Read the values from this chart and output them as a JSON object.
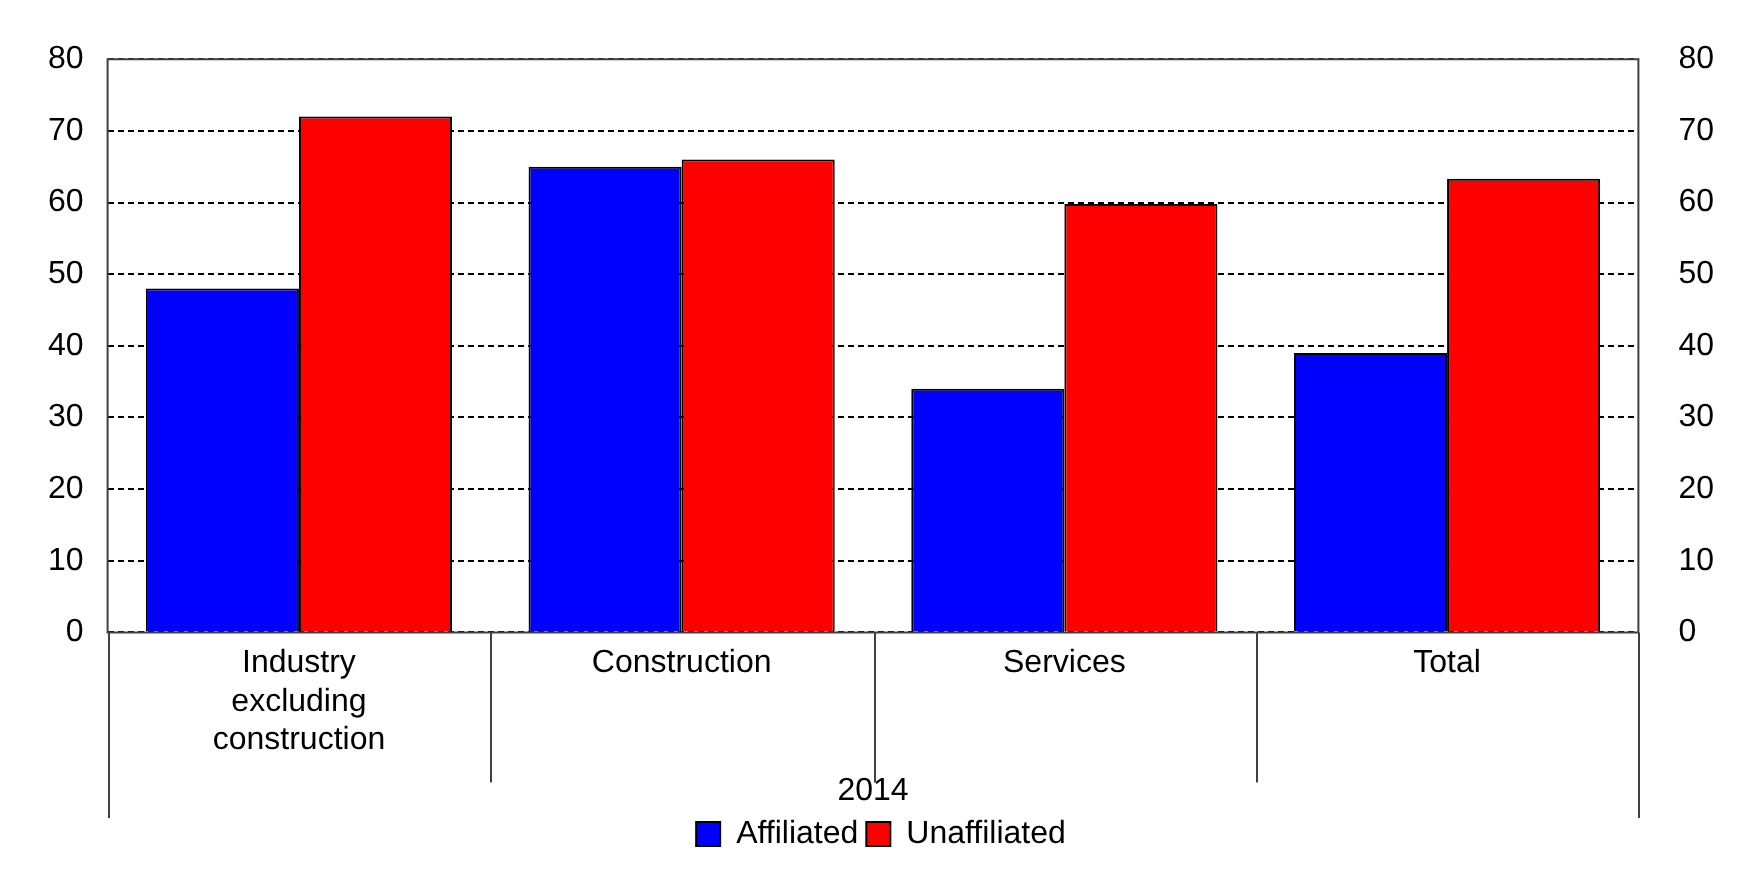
{
  "chart_data": {
    "type": "bar",
    "categories": [
      "Industry excluding construction",
      "Construction",
      "Services",
      "Total"
    ],
    "xlabel": "2014",
    "series": [
      {
        "name": "Affiliated",
        "color": "#0000ff",
        "values": [
          48,
          65,
          34,
          39
        ]
      },
      {
        "name": "Unaffiliated",
        "color": "#ff0000",
        "values": [
          72,
          66,
          59.8,
          63.3
        ]
      }
    ],
    "ylim": [
      0,
      80
    ],
    "yticks": [
      0,
      10,
      20,
      30,
      40,
      50,
      60,
      70,
      80
    ],
    "y2lim": [
      0,
      80
    ],
    "y2ticks": [
      0,
      10,
      20,
      30,
      40,
      50,
      60,
      70,
      80
    ],
    "grid": "y",
    "legend": "bottom"
  }
}
